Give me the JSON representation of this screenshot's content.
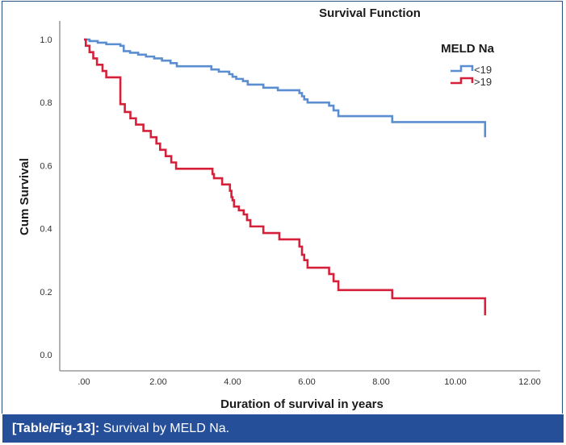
{
  "figure": {
    "caption_label": "[Table/Fig-13]:",
    "caption_text": " Survival by MELD Na.",
    "caption_bg": "#264f9a"
  },
  "chart_data": {
    "type": "line",
    "step": true,
    "title": "Survival Function",
    "xlabel": "Duration of survival in years",
    "ylabel": "Cum Survival",
    "xlim": [
      -0.6,
      12.4
    ],
    "ylim": [
      -0.05,
      1.05
    ],
    "xticks": [
      0,
      2,
      4,
      6,
      8,
      10,
      12
    ],
    "xtick_labels": [
      ".00",
      "2.00",
      "4.00",
      "6.00",
      "8.00",
      "10.00",
      "12.00"
    ],
    "yticks": [
      0.0,
      0.2,
      0.4,
      0.6,
      0.8,
      1.0
    ],
    "ytick_labels": [
      "0.0",
      "0.2",
      "0.4",
      "0.6",
      "0.8",
      "1.0"
    ],
    "grid": false,
    "legend": {
      "title": "MELD Na",
      "position": "top-right"
    },
    "series": [
      {
        "name": "<19",
        "color": "#5b8ed0",
        "x": [
          0,
          0.15,
          0.37,
          0.6,
          0.98,
          1.07,
          1.24,
          1.46,
          1.67,
          1.89,
          2.1,
          2.33,
          2.5,
          3.43,
          3.63,
          3.91,
          4.0,
          4.1,
          4.28,
          4.41,
          4.83,
          5.22,
          5.8,
          5.87,
          5.93,
          6.02,
          6.6,
          6.72,
          6.85,
          8.3,
          10.8
        ],
        "y": [
          1.0,
          0.995,
          0.99,
          0.985,
          0.98,
          0.963,
          0.958,
          0.952,
          0.946,
          0.94,
          0.933,
          0.925,
          0.915,
          0.905,
          0.898,
          0.89,
          0.882,
          0.875,
          0.868,
          0.857,
          0.847,
          0.839,
          0.83,
          0.82,
          0.81,
          0.8,
          0.79,
          0.775,
          0.757,
          0.738,
          0.69
        ]
      },
      {
        "name": ">19",
        "color": "#d6203a",
        "x": [
          0,
          0.05,
          0.15,
          0.25,
          0.35,
          0.5,
          0.6,
          0.98,
          1.1,
          1.25,
          1.4,
          1.6,
          1.8,
          1.95,
          2.05,
          2.2,
          2.35,
          2.48,
          3.46,
          3.5,
          3.72,
          3.93,
          3.97,
          4.0,
          4.04,
          4.17,
          4.3,
          4.39,
          4.48,
          4.83,
          5.26,
          5.8,
          5.87,
          5.93,
          6.02,
          6.6,
          6.72,
          6.85,
          8.3,
          10.8
        ],
        "y": [
          1.0,
          0.98,
          0.96,
          0.94,
          0.92,
          0.9,
          0.88,
          0.795,
          0.77,
          0.75,
          0.73,
          0.71,
          0.69,
          0.67,
          0.65,
          0.63,
          0.61,
          0.59,
          0.573,
          0.56,
          0.54,
          0.52,
          0.5,
          0.49,
          0.47,
          0.458,
          0.445,
          0.427,
          0.407,
          0.386,
          0.366,
          0.343,
          0.317,
          0.3,
          0.276,
          0.256,
          0.233,
          0.205,
          0.179,
          0.125
        ]
      }
    ]
  }
}
